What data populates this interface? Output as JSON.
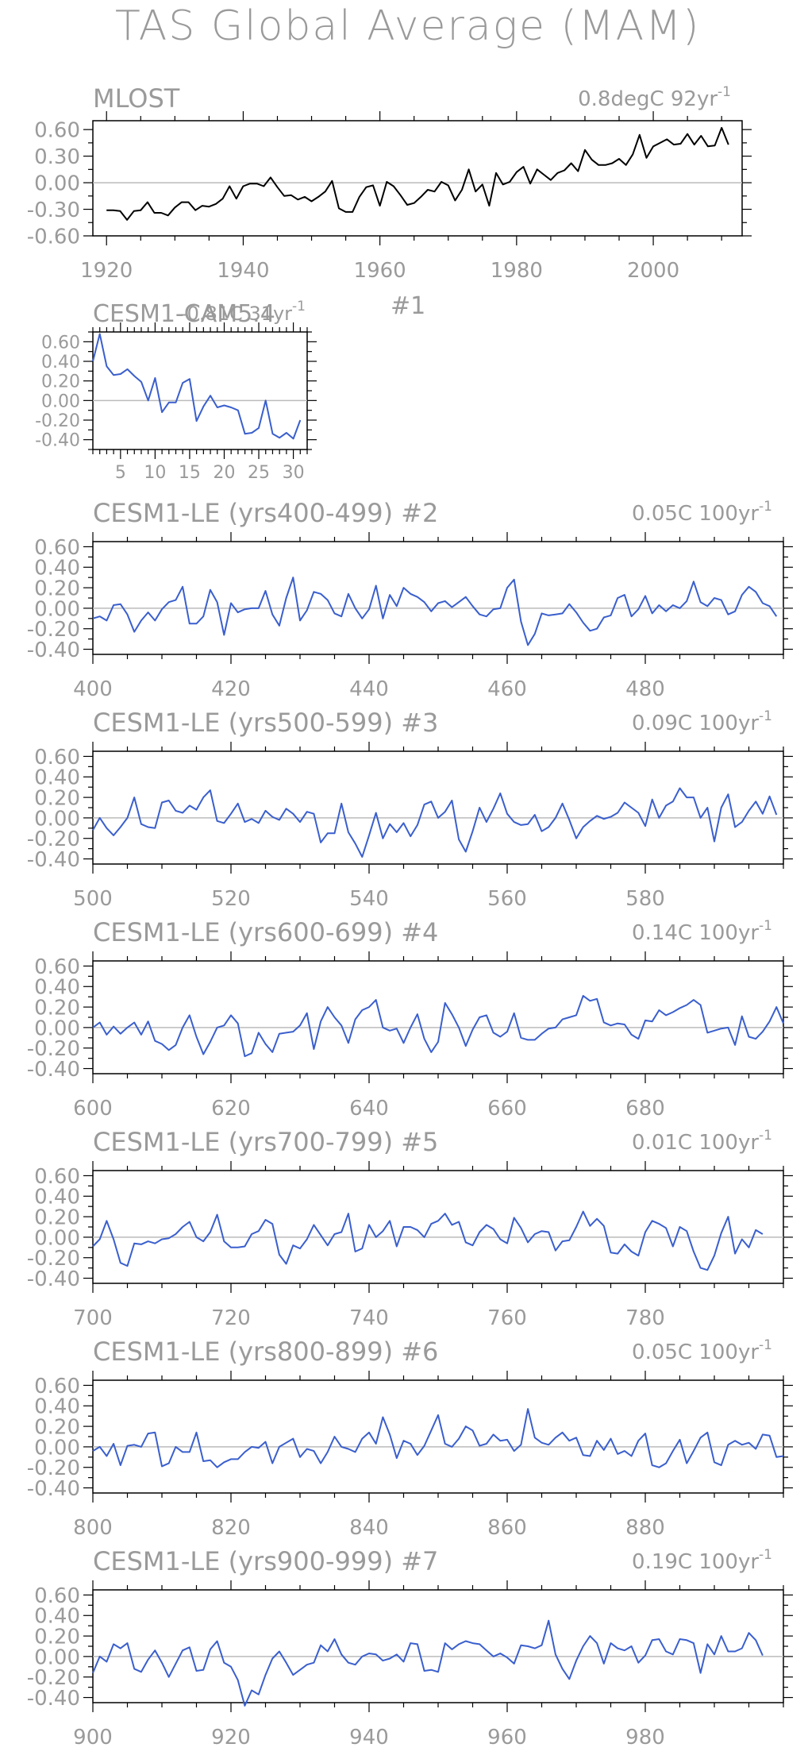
{
  "title": "TAS Global Average (MAM)",
  "colors": {
    "observed": "#000000",
    "model": "#3a5fcd",
    "frame": "#000000",
    "text": "#9a9a9a",
    "zero": "#bbbbbb"
  },
  "chart_data": [
    {
      "type": "line",
      "left_title": "MLOST",
      "right_title": "0.8degC 92yr",
      "right_sup": "-1",
      "color": "#000000",
      "xlim": [
        1918,
        2013
      ],
      "ylim": [
        -0.6,
        0.7
      ],
      "yticks": [
        "0.60",
        "0.30",
        "0.00",
        "-0.30",
        "-0.60"
      ],
      "ytick_values": [
        0.6,
        0.3,
        0.0,
        -0.3,
        -0.6
      ],
      "xticks": [
        "1920",
        "1940",
        "1960",
        "1980",
        "2000"
      ],
      "xtick_values": [
        1920,
        1940,
        1960,
        1980,
        2000
      ],
      "x_start": 1920,
      "values": [
        -0.31,
        -0.31,
        -0.32,
        -0.42,
        -0.32,
        -0.31,
        -0.22,
        -0.34,
        -0.34,
        -0.37,
        -0.28,
        -0.22,
        -0.22,
        -0.31,
        -0.26,
        -0.27,
        -0.24,
        -0.18,
        -0.04,
        -0.18,
        -0.04,
        -0.01,
        -0.01,
        -0.04,
        0.06,
        -0.05,
        -0.15,
        -0.14,
        -0.19,
        -0.16,
        -0.21,
        -0.16,
        -0.1,
        0.02,
        -0.29,
        -0.33,
        -0.33,
        -0.16,
        -0.05,
        -0.03,
        -0.26,
        0.01,
        -0.04,
        -0.14,
        -0.25,
        -0.23,
        -0.16,
        -0.08,
        -0.1,
        0.01,
        -0.03,
        -0.2,
        -0.08,
        0.15,
        -0.1,
        -0.02,
        -0.26,
        0.11,
        -0.02,
        0.01,
        0.12,
        0.18,
        -0.01,
        0.15,
        0.09,
        0.03,
        0.11,
        0.14,
        0.22,
        0.13,
        0.37,
        0.26,
        0.2,
        0.2,
        0.22,
        0.27,
        0.2,
        0.32,
        0.54,
        0.28,
        0.41,
        0.45,
        0.49,
        0.43,
        0.44,
        0.55,
        0.43,
        0.53,
        0.41,
        0.42,
        0.62,
        0.43
      ]
    },
    {
      "type": "line",
      "left_title": "CESM1-CAM5.4",
      "center_title": "#1",
      "right_title": "-0.81C 31yr",
      "right_sup": "-1",
      "color": "#3a5fcd",
      "xlim": [
        1,
        32
      ],
      "ylim": [
        -0.5,
        0.7
      ],
      "yticks": [
        "0.60",
        "0.40",
        "0.20",
        "0.00",
        "-0.20",
        "-0.40"
      ],
      "ytick_values": [
        0.6,
        0.4,
        0.2,
        0.0,
        -0.2,
        -0.4
      ],
      "xticks": [
        "5",
        "10",
        "15",
        "20",
        "25",
        "30"
      ],
      "xtick_values": [
        5,
        10,
        15,
        20,
        25,
        30
      ],
      "x_start": 1,
      "values": [
        0.4,
        0.68,
        0.35,
        0.26,
        0.27,
        0.32,
        0.25,
        0.19,
        0.0,
        0.23,
        -0.12,
        -0.02,
        -0.02,
        0.18,
        0.22,
        -0.21,
        -0.06,
        0.05,
        -0.07,
        -0.05,
        -0.07,
        -0.1,
        -0.34,
        -0.33,
        -0.28,
        0.0,
        -0.34,
        -0.38,
        -0.33,
        -0.39,
        -0.2
      ]
    },
    {
      "type": "line",
      "left_title": "CESM1-LE (yrs400-499) #2",
      "right_title": "0.05C 100yr",
      "right_sup": "-1",
      "color": "#3a5fcd",
      "xlim": [
        400,
        500
      ],
      "ylim": [
        -0.45,
        0.65
      ],
      "yticks": [
        "0.60",
        "0.40",
        "0.20",
        "0.00",
        "-0.20",
        "-0.40"
      ],
      "ytick_values": [
        0.6,
        0.4,
        0.2,
        0.0,
        -0.2,
        -0.4
      ],
      "xticks": [
        "400",
        "420",
        "440",
        "460",
        "480"
      ],
      "xtick_values": [
        400,
        420,
        440,
        460,
        480
      ],
      "x_start": 400,
      "values": [
        -0.1,
        -0.08,
        -0.12,
        0.03,
        0.04,
        -0.06,
        -0.23,
        -0.12,
        -0.04,
        -0.12,
        -0.01,
        0.06,
        0.08,
        0.21,
        -0.15,
        -0.15,
        -0.08,
        0.18,
        0.06,
        -0.26,
        0.05,
        -0.04,
        -0.01,
        0.0,
        0.0,
        0.17,
        -0.06,
        -0.17,
        0.1,
        0.3,
        -0.12,
        -0.02,
        0.16,
        0.14,
        0.08,
        -0.05,
        -0.08,
        0.14,
        0.0,
        -0.1,
        -0.01,
        0.22,
        -0.1,
        0.13,
        0.02,
        0.2,
        0.14,
        0.11,
        0.06,
        -0.03,
        0.05,
        0.07,
        0.01,
        0.06,
        0.11,
        0.02,
        -0.06,
        -0.08,
        -0.01,
        0.0,
        0.2,
        0.28,
        -0.13,
        -0.36,
        -0.25,
        -0.05,
        -0.07,
        -0.06,
        -0.05,
        0.04,
        -0.04,
        -0.14,
        -0.22,
        -0.2,
        -0.09,
        -0.07,
        0.1,
        0.13,
        -0.08,
        -0.01,
        0.12,
        -0.05,
        0.03,
        -0.03,
        0.03,
        0.0,
        0.07,
        0.26,
        0.06,
        0.02,
        0.1,
        0.08,
        -0.06,
        -0.03,
        0.13,
        0.21,
        0.16,
        0.05,
        0.02,
        -0.08
      ]
    },
    {
      "type": "line",
      "left_title": "CESM1-LE (yrs500-599) #3",
      "right_title": "0.09C 100yr",
      "right_sup": "-1",
      "color": "#3a5fcd",
      "xlim": [
        500,
        600
      ],
      "ylim": [
        -0.45,
        0.65
      ],
      "yticks": [
        "0.60",
        "0.40",
        "0.20",
        "0.00",
        "-0.20",
        "-0.40"
      ],
      "ytick_values": [
        0.6,
        0.4,
        0.2,
        0.0,
        -0.2,
        -0.4
      ],
      "xticks": [
        "500",
        "520",
        "540",
        "560",
        "580"
      ],
      "xtick_values": [
        500,
        520,
        540,
        560,
        580
      ],
      "x_start": 500,
      "values": [
        -0.12,
        0.0,
        -0.1,
        -0.17,
        -0.09,
        0.0,
        0.2,
        -0.06,
        -0.09,
        -0.1,
        0.15,
        0.17,
        0.07,
        0.05,
        0.12,
        0.08,
        0.2,
        0.27,
        -0.03,
        -0.05,
        0.04,
        0.14,
        -0.04,
        -0.01,
        -0.05,
        0.07,
        0.01,
        -0.02,
        0.09,
        0.04,
        -0.04,
        0.06,
        0.04,
        -0.24,
        -0.15,
        -0.15,
        0.14,
        -0.14,
        -0.25,
        -0.38,
        -0.17,
        0.05,
        -0.2,
        -0.06,
        -0.14,
        -0.05,
        -0.18,
        -0.07,
        0.13,
        0.16,
        0.0,
        0.06,
        0.17,
        -0.21,
        -0.33,
        -0.13,
        0.1,
        -0.04,
        0.09,
        0.24,
        0.04,
        -0.04,
        -0.07,
        -0.06,
        0.03,
        -0.13,
        -0.09,
        0.0,
        0.14,
        -0.02,
        -0.2,
        -0.09,
        -0.03,
        0.02,
        -0.01,
        0.01,
        0.05,
        0.15,
        0.1,
        0.05,
        -0.08,
        0.18,
        0.0,
        0.12,
        0.16,
        0.29,
        0.2,
        0.2,
        0.0,
        0.1,
        -0.23,
        0.1,
        0.23,
        -0.09,
        -0.04,
        0.07,
        0.16,
        0.04,
        0.21,
        0.03
      ]
    },
    {
      "type": "line",
      "left_title": "CESM1-LE (yrs600-699) #4",
      "right_title": "0.14C 100yr",
      "right_sup": "-1",
      "color": "#3a5fcd",
      "xlim": [
        600,
        700
      ],
      "ylim": [
        -0.45,
        0.65
      ],
      "yticks": [
        "0.60",
        "0.40",
        "0.20",
        "0.00",
        "-0.20",
        "-0.40"
      ],
      "ytick_values": [
        0.6,
        0.4,
        0.2,
        0.0,
        -0.2,
        -0.4
      ],
      "xticks": [
        "600",
        "620",
        "640",
        "660",
        "680"
      ],
      "xtick_values": [
        600,
        620,
        640,
        660,
        680
      ],
      "x_start": 600,
      "values": [
        0.0,
        0.05,
        -0.07,
        0.01,
        -0.06,
        0.0,
        0.05,
        -0.07,
        0.06,
        -0.13,
        -0.16,
        -0.22,
        -0.17,
        0.0,
        0.12,
        -0.09,
        -0.26,
        -0.14,
        0.0,
        0.02,
        0.12,
        0.04,
        -0.28,
        -0.25,
        -0.05,
        -0.16,
        -0.24,
        -0.06,
        -0.05,
        -0.04,
        0.02,
        0.14,
        -0.21,
        0.06,
        0.2,
        0.1,
        0.02,
        -0.15,
        0.08,
        0.17,
        0.2,
        0.27,
        0.0,
        -0.03,
        -0.01,
        -0.15,
        0.0,
        0.13,
        -0.11,
        -0.24,
        -0.14,
        0.24,
        0.13,
        0.0,
        -0.18,
        -0.02,
        0.1,
        0.12,
        -0.05,
        -0.09,
        -0.04,
        0.14,
        -0.1,
        -0.12,
        -0.12,
        -0.06,
        -0.01,
        0.0,
        0.08,
        0.1,
        0.12,
        0.31,
        0.26,
        0.28,
        0.05,
        0.02,
        0.04,
        0.03,
        -0.07,
        -0.11,
        0.07,
        0.06,
        0.17,
        0.12,
        0.15,
        0.19,
        0.22,
        0.27,
        0.22,
        -0.05,
        -0.03,
        -0.01,
        0.0,
        -0.17,
        0.11,
        -0.09,
        -0.11,
        -0.04,
        0.06,
        0.2,
        0.04
      ]
    },
    {
      "type": "line",
      "left_title": "CESM1-LE (yrs700-799) #5",
      "right_title": "0.01C 100yr",
      "right_sup": "-1",
      "color": "#3a5fcd",
      "xlim": [
        700,
        800
      ],
      "ylim": [
        -0.45,
        0.65
      ],
      "yticks": [
        "0.60",
        "0.40",
        "0.20",
        "0.00",
        "-0.20",
        "-0.40"
      ],
      "ytick_values": [
        0.6,
        0.4,
        0.2,
        0.0,
        -0.2,
        -0.4
      ],
      "xticks": [
        "700",
        "720",
        "740",
        "760",
        "780"
      ],
      "xtick_values": [
        700,
        720,
        740,
        760,
        780
      ],
      "x_start": 700,
      "values": [
        -0.09,
        -0.02,
        0.16,
        -0.02,
        -0.25,
        -0.28,
        -0.06,
        -0.07,
        -0.04,
        -0.06,
        -0.02,
        -0.01,
        0.03,
        0.1,
        0.15,
        0.0,
        -0.04,
        0.05,
        0.22,
        -0.04,
        -0.1,
        -0.1,
        -0.09,
        0.03,
        0.06,
        0.17,
        0.13,
        -0.17,
        -0.26,
        -0.08,
        -0.11,
        -0.02,
        0.12,
        0.02,
        -0.08,
        0.03,
        0.05,
        0.23,
        -0.14,
        -0.11,
        0.12,
        0.0,
        0.06,
        0.16,
        -0.09,
        0.1,
        0.1,
        0.07,
        0.0,
        0.13,
        0.16,
        0.23,
        0.12,
        0.15,
        -0.05,
        -0.08,
        0.05,
        0.12,
        0.08,
        -0.02,
        -0.06,
        0.19,
        0.09,
        -0.05,
        0.03,
        0.06,
        0.05,
        -0.13,
        -0.04,
        -0.03,
        0.1,
        0.25,
        0.11,
        0.18,
        0.11,
        -0.15,
        -0.16,
        -0.07,
        -0.14,
        -0.18,
        0.05,
        0.16,
        0.13,
        0.09,
        -0.09,
        0.1,
        0.06,
        -0.14,
        -0.3,
        -0.32,
        -0.18,
        0.04,
        0.2,
        -0.16,
        -0.02,
        -0.1,
        0.07,
        0.03
      ]
    },
    {
      "type": "line",
      "left_title": "CESM1-LE (yrs800-899) #6",
      "right_title": "0.05C 100yr",
      "right_sup": "-1",
      "color": "#3a5fcd",
      "xlim": [
        800,
        900
      ],
      "ylim": [
        -0.45,
        0.65
      ],
      "yticks": [
        "0.60",
        "0.40",
        "0.20",
        "0.00",
        "-0.20",
        "-0.40"
      ],
      "ytick_values": [
        0.6,
        0.4,
        0.2,
        0.0,
        -0.2,
        -0.4
      ],
      "xticks": [
        "800",
        "820",
        "840",
        "860",
        "880"
      ],
      "xtick_values": [
        800,
        820,
        840,
        860,
        880
      ],
      "x_start": 800,
      "values": [
        -0.04,
        0.0,
        -0.09,
        0.03,
        -0.18,
        0.01,
        0.02,
        0.0,
        0.13,
        0.14,
        -0.19,
        -0.16,
        0.0,
        -0.05,
        -0.05,
        0.14,
        -0.14,
        -0.13,
        -0.2,
        -0.15,
        -0.12,
        -0.12,
        -0.05,
        0.0,
        -0.01,
        0.05,
        -0.16,
        0.0,
        0.04,
        0.08,
        -0.1,
        -0.02,
        -0.04,
        -0.16,
        -0.05,
        0.1,
        0.0,
        -0.02,
        -0.05,
        0.08,
        0.14,
        0.03,
        0.29,
        0.12,
        -0.11,
        0.06,
        0.03,
        -0.08,
        0.01,
        0.16,
        0.31,
        0.03,
        0.0,
        0.08,
        0.2,
        0.16,
        0.01,
        0.03,
        0.12,
        0.06,
        0.07,
        -0.04,
        0.02,
        0.37,
        0.09,
        0.04,
        0.02,
        0.09,
        0.14,
        0.06,
        0.09,
        -0.08,
        -0.09,
        0.06,
        -0.03,
        0.08,
        -0.07,
        -0.04,
        -0.09,
        0.06,
        0.13,
        -0.18,
        -0.2,
        -0.16,
        -0.04,
        0.07,
        -0.16,
        -0.04,
        0.09,
        0.14,
        -0.15,
        -0.18,
        0.02,
        0.06,
        0.02,
        0.04,
        -0.02,
        0.12,
        0.11,
        -0.1,
        -0.09
      ]
    },
    {
      "type": "line",
      "left_title": "CESM1-LE (yrs900-999) #7",
      "right_title": "0.19C 100yr",
      "right_sup": "-1",
      "color": "#3a5fcd",
      "xlim": [
        900,
        1000
      ],
      "ylim": [
        -0.45,
        0.65
      ],
      "yticks": [
        "0.60",
        "0.40",
        "0.20",
        "0.00",
        "-0.20",
        "-0.40"
      ],
      "ytick_values": [
        0.6,
        0.4,
        0.2,
        0.0,
        -0.2,
        -0.4
      ],
      "xticks": [
        "900",
        "920",
        "940",
        "960",
        "980"
      ],
      "xtick_values": [
        900,
        920,
        940,
        960,
        980
      ],
      "x_start": 900,
      "values": [
        -0.16,
        0.0,
        -0.05,
        0.12,
        0.08,
        0.13,
        -0.12,
        -0.15,
        -0.03,
        0.06,
        -0.06,
        -0.2,
        -0.07,
        0.06,
        0.09,
        -0.14,
        -0.13,
        0.07,
        0.15,
        -0.06,
        -0.1,
        -0.23,
        -0.48,
        -0.33,
        -0.37,
        -0.18,
        -0.02,
        0.05,
        -0.06,
        -0.18,
        -0.13,
        -0.08,
        -0.06,
        0.11,
        0.05,
        0.17,
        0.02,
        -0.06,
        -0.08,
        0.0,
        0.03,
        0.02,
        -0.04,
        -0.02,
        0.02,
        -0.05,
        0.13,
        0.12,
        -0.14,
        -0.13,
        -0.15,
        0.13,
        0.07,
        0.12,
        0.15,
        0.13,
        0.12,
        0.06,
        0.0,
        0.03,
        -0.01,
        -0.07,
        0.11,
        0.1,
        0.08,
        0.11,
        0.35,
        0.02,
        -0.12,
        -0.22,
        -0.04,
        0.1,
        0.2,
        0.13,
        -0.07,
        0.13,
        0.08,
        0.06,
        0.1,
        -0.06,
        0.01,
        0.16,
        0.17,
        0.05,
        0.02,
        0.17,
        0.16,
        0.13,
        -0.16,
        0.12,
        0.02,
        0.2,
        0.05,
        0.05,
        0.08,
        0.23,
        0.16,
        0.01
      ]
    }
  ]
}
